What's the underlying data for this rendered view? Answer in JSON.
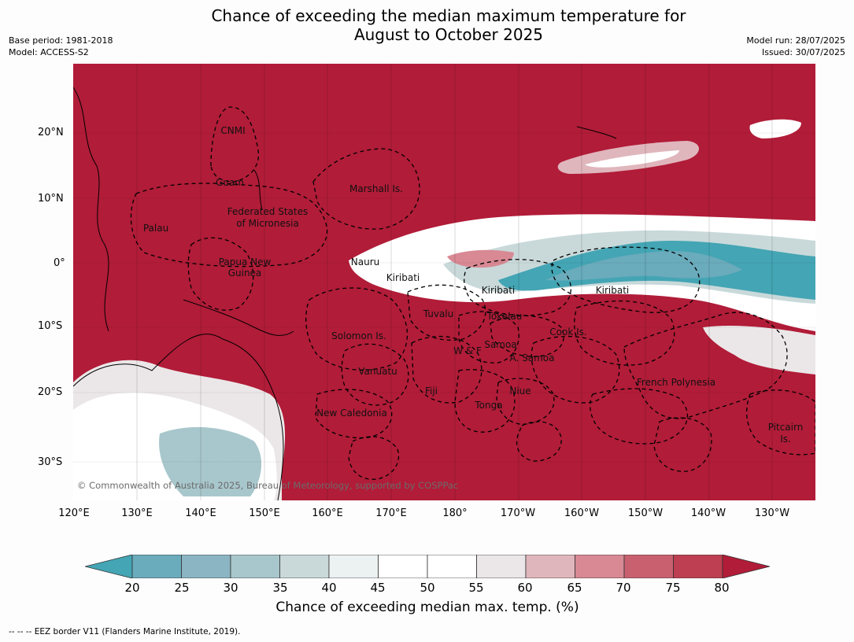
{
  "header": {
    "title_line1": "Chance of exceeding the median maximum temperature for",
    "title_line2": "August to October 2025",
    "base_period": "Base period: 1981-2018",
    "model": "Model: ACCESS-S2",
    "model_run": "Model run: 28/07/2025",
    "issued": "Issued: 30/07/2025"
  },
  "map": {
    "background_color": "#b11c38",
    "lat_ticks": [
      "20°N",
      "10°N",
      "0°",
      "10°S",
      "20°S",
      "30°S"
    ],
    "lon_ticks": [
      "120°E",
      "130°E",
      "140°E",
      "150°E",
      "160°E",
      "170°E",
      "180°",
      "170°W",
      "160°W",
      "150°W",
      "140°W",
      "130°W"
    ],
    "places": [
      "CNMI",
      "Guam",
      "Marshall Is.",
      "Palau",
      "Federated States",
      "of Micronesia",
      "Papua New",
      "Guinea",
      "Nauru",
      "Kiribati",
      "Kiribati",
      "Kiribati",
      "Tuvalu",
      "Tokelau",
      "Cook Is.",
      "Solomon Is.",
      "Samoa",
      "W & F",
      "A. Samoa",
      "Vanuatu",
      "Fiji",
      "Niue",
      "French Polynesia",
      "Tonga",
      "New Caledonia",
      "Pitcairn",
      "Is."
    ],
    "copyright": "© Commonwealth of Australia 2025, Bureau of Meteorology, supported by COSPPac"
  },
  "colorbar": {
    "ticks": [
      "20",
      "25",
      "30",
      "35",
      "40",
      "45",
      "50",
      "55",
      "60",
      "65",
      "70",
      "75",
      "80"
    ],
    "colors": [
      "#44a5b4",
      "#6aabbc",
      "#8bb5c2",
      "#a8c7cc",
      "#c9d9da",
      "#ecf1f2",
      "#ffffff",
      "#ffffff",
      "#ebe7e8",
      "#e0b6bd",
      "#d88994",
      "#c9606f",
      "#bd3f51",
      "#b11c38"
    ],
    "label": "Chance of exceeding median max. temp. (%)"
  },
  "footnote": "--  --  -- EEZ border V11 (Flanders Marine Institute, 2019)."
}
